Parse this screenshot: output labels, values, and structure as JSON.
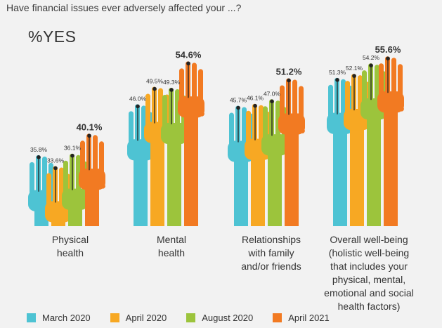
{
  "question": "Have financial issues ever adversely affected your ...?",
  "metric_label": "%YES",
  "colors": {
    "March 2020": "#4ec3d3",
    "April 2020": "#f7a823",
    "August 2020": "#9cc43c",
    "April 2021": "#f27a22"
  },
  "chart_data": {
    "type": "bar",
    "metric": "%YES",
    "categories": [
      "Physical health",
      "Mental health",
      "Relationships with family and/or friends",
      "Overall well-being (holistic well-being that includes your physical, mental, emotional and social health factors)"
    ],
    "category_lines": [
      [
        "Physical",
        "health"
      ],
      [
        "Mental",
        "health"
      ],
      [
        "Relationships",
        "with family",
        "and/or friends"
      ],
      [
        "Overall well-being",
        "(holistic well-being",
        "that includes your",
        "physical, mental,",
        "emotional and social",
        "health factors)"
      ]
    ],
    "series": [
      {
        "name": "March 2020",
        "values": [
          35.8,
          46.0,
          45.7,
          51.3
        ],
        "labels": [
          "35.8%",
          "46.0%",
          "45.7%",
          "51.3%"
        ]
      },
      {
        "name": "April 2020",
        "values": [
          33.6,
          49.5,
          46.1,
          52.1
        ],
        "labels": [
          "33.6%",
          "49.5%",
          "46.1%",
          "52.1%"
        ]
      },
      {
        "name": "August 2020",
        "values": [
          36.1,
          49.3,
          47.0,
          54.2
        ],
        "labels": [
          "36.1%",
          "49.3%",
          "47.0%",
          "54.2%"
        ]
      },
      {
        "name": "April 2021",
        "values": [
          40.1,
          54.6,
          51.2,
          55.6
        ],
        "labels": [
          "40.1%",
          "54.6%",
          "51.2%",
          "55.6%"
        ]
      }
    ],
    "legend_position": "bottom",
    "grid": false
  }
}
